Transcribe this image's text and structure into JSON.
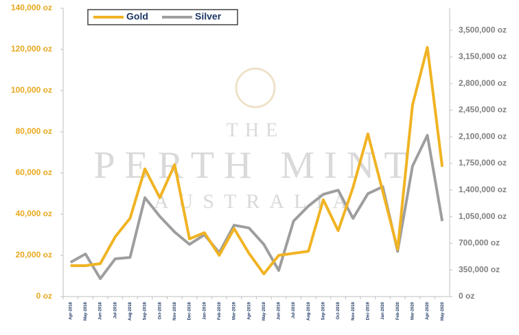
{
  "chart_data": {
    "type": "line",
    "watermark": [
      "THE",
      "PERTH MINT",
      "AUSTRALIA"
    ],
    "categories": [
      "Apr-2018",
      "May-2018",
      "Jun-2018",
      "Jul-2018",
      "Aug-2018",
      "Sep-2018",
      "Oct-2018",
      "Nov-2018",
      "Dec-2018",
      "Jan-2019",
      "Feb-2019",
      "Mar-2019",
      "Apr-2019",
      "May-2019",
      "Jun-2019",
      "Jul-2019",
      "Aug-2019",
      "Sep-2019",
      "Oct-2019",
      "Nov-2019",
      "Dec-2019",
      "Jan-2020",
      "Feb-2020",
      "Mar-2020",
      "Apr-2020",
      "May-2020"
    ],
    "series": [
      {
        "name": "Gold",
        "color": "#f0b323",
        "values": [
          15000,
          15000,
          16000,
          29000,
          38000,
          62000,
          48000,
          64000,
          28000,
          31000,
          20000,
          33000,
          21000,
          11000,
          20000,
          21000,
          22000,
          47000,
          32000,
          53000,
          79000,
          51000,
          23000,
          93000,
          121000,
          63000
        ]
      },
      {
        "name": "Silver",
        "color": "#9e9e9e",
        "axis": "y2",
        "values": [
          450000,
          560000,
          235000,
          496000,
          514000,
          1300000,
          1055000,
          848000,
          686000,
          812000,
          577000,
          938000,
          902000,
          686000,
          343000,
          992000,
          1190000,
          1344000,
          1398000,
          1028000,
          1353000,
          1443000,
          595000,
          1714000,
          2120000,
          992000
        ]
      }
    ],
    "ylim": [
      0,
      140000
    ],
    "yticks": [
      {
        "value": 0,
        "label": "0 oz"
      },
      {
        "value": 20000,
        "label": "20,000 oz"
      },
      {
        "value": 40000,
        "label": "40,000 oz"
      },
      {
        "value": 60000,
        "label": "60,000 oz"
      },
      {
        "value": 80000,
        "label": "80,000 oz"
      },
      {
        "value": 100000,
        "label": "100,000 oz"
      },
      {
        "value": 120000,
        "label": "120,000 oz"
      },
      {
        "value": 140000,
        "label": "140,000 oz"
      }
    ],
    "y2lim": [
      0,
      3790000
    ],
    "y2ticks": [
      {
        "value": 0,
        "label": "0 oz"
      },
      {
        "value": 350000,
        "label": "350,000 oz"
      },
      {
        "value": 700000,
        "label": "700,000 oz"
      },
      {
        "value": 1050000,
        "label": "1,050,000 oz"
      },
      {
        "value": 1400000,
        "label": "1,400,000 oz"
      },
      {
        "value": 1750000,
        "label": "1,750,000 oz"
      },
      {
        "value": 2100000,
        "label": "2,100,000 oz"
      },
      {
        "value": 2450000,
        "label": "2,450,000 oz"
      },
      {
        "value": 2800000,
        "label": "2,800,000 oz"
      },
      {
        "value": 3150000,
        "label": "3,150,000 oz"
      },
      {
        "value": 3500000,
        "label": "3,500,000 oz"
      }
    ],
    "legend": "top-left"
  }
}
